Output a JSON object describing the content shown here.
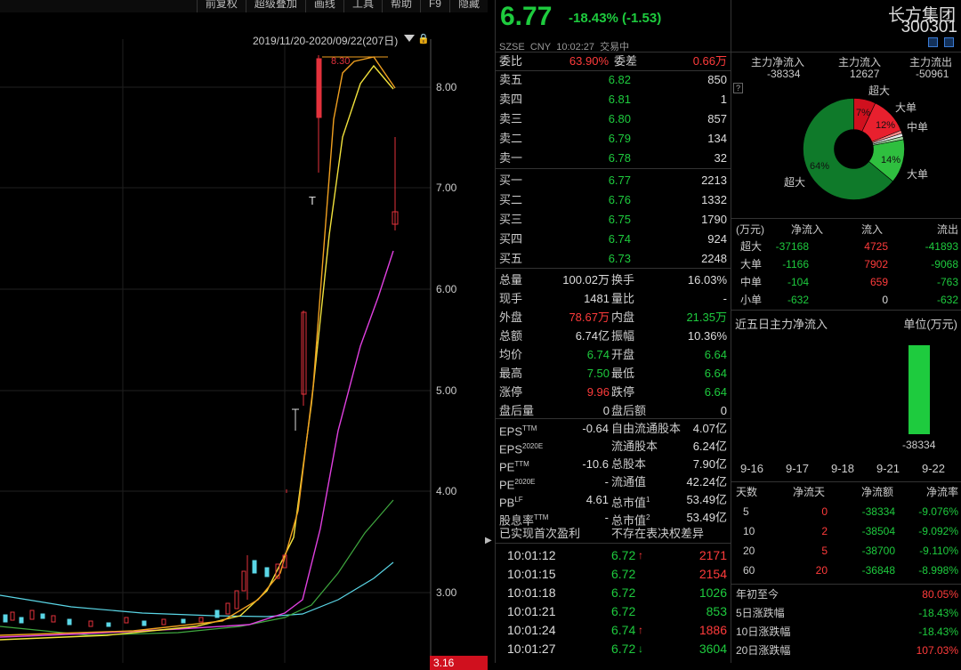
{
  "toolbar": [
    "前复权",
    "超级叠加",
    "画线",
    "工具",
    "帮助",
    "F9",
    "隐藏"
  ],
  "chart": {
    "range_label": "2019/11/20-2020/09/22(207日)",
    "y_ticks": [
      "8.00",
      "7.00",
      "6.00",
      "5.00",
      "4.00",
      "3.00"
    ],
    "current_price_tag": "3.16",
    "high_marker": "8.30"
  },
  "quote": {
    "price": "6.77",
    "change": "-18.43% (-1.53)",
    "market": "SZSE",
    "currency": "CNY",
    "time": "10:02:27",
    "status": "交易中"
  },
  "order_ratio": {
    "label1": "委比",
    "value1": "63.90%",
    "label2": "委差",
    "value2": "0.66万"
  },
  "asks": [
    {
      "label": "卖五",
      "price": "6.82",
      "vol": "850"
    },
    {
      "label": "卖四",
      "price": "6.81",
      "vol": "1"
    },
    {
      "label": "卖三",
      "price": "6.80",
      "vol": "857"
    },
    {
      "label": "卖二",
      "price": "6.79",
      "vol": "134"
    },
    {
      "label": "卖一",
      "price": "6.78",
      "vol": "32"
    }
  ],
  "bids": [
    {
      "label": "买一",
      "price": "6.77",
      "vol": "2213"
    },
    {
      "label": "买二",
      "price": "6.76",
      "vol": "1332"
    },
    {
      "label": "买三",
      "price": "6.75",
      "vol": "1790"
    },
    {
      "label": "买四",
      "price": "6.74",
      "vol": "924"
    },
    {
      "label": "买五",
      "price": "6.73",
      "vol": "2248"
    }
  ],
  "stats": [
    {
      "l1": "总量",
      "v1": "100.02万",
      "c1": "white",
      "l2": "换手",
      "v2": "16.03%",
      "c2": "white"
    },
    {
      "l1": "现手",
      "v1": "1481",
      "c1": "white",
      "l2": "量比",
      "v2": "-",
      "c2": "white"
    },
    {
      "l1": "外盘",
      "v1": "78.67万",
      "c1": "red",
      "l2": "内盘",
      "v2": "21.35万",
      "c2": "green"
    },
    {
      "l1": "总额",
      "v1": "6.74亿",
      "c1": "white",
      "l2": "振幅",
      "v2": "10.36%",
      "c2": "white"
    },
    {
      "l1": "均价",
      "v1": "6.74",
      "c1": "green",
      "l2": "开盘",
      "v2": "6.64",
      "c2": "green"
    },
    {
      "l1": "最高",
      "v1": "7.50",
      "c1": "green",
      "l2": "最低",
      "v2": "6.64",
      "c2": "green"
    },
    {
      "l1": "涨停",
      "v1": "9.96",
      "c1": "red",
      "l2": "跌停",
      "v2": "6.64",
      "c2": "green"
    },
    {
      "l1": "盘后量",
      "v1": "0",
      "c1": "white",
      "l2": "盘后额",
      "v2": "0",
      "c2": "white"
    }
  ],
  "fundamentals": [
    {
      "l1": "EPS",
      "sup1": "TTM",
      "v1": "-0.64",
      "l2": "自由流通股本",
      "v2": "4.07亿"
    },
    {
      "l1": "EPS",
      "sup1": "2020E",
      "v1": "",
      "l2": "流通股本",
      "v2": "6.24亿"
    },
    {
      "l1": "PE",
      "sup1": "TTM",
      "v1": "-10.6",
      "l2": "总股本",
      "v2": "7.90亿"
    },
    {
      "l1": "PE",
      "sup1": "2020E",
      "v1": "-",
      "l2": "流通值",
      "v2": "42.24亿"
    },
    {
      "l1": "PB",
      "sup1": "LF",
      "v1": "4.61",
      "l2": "总市值",
      "sup2": "1",
      "v2": "53.49亿"
    },
    {
      "l1": "股息率",
      "sup1": "TTM",
      "v1": "-",
      "l2": "总市值",
      "sup2": "2",
      "v2": "53.49亿"
    }
  ],
  "profit_note": {
    "l1": "已实现首次盈利",
    "l2": "不存在表决权差异"
  },
  "ticks": [
    {
      "time": "10:01:12",
      "price": "6.72",
      "arrow": "↑",
      "vol": "2171",
      "vc": "red"
    },
    {
      "time": "10:01:15",
      "price": "6.72",
      "arrow": "",
      "vol": "2154",
      "vc": "red"
    },
    {
      "time": "10:01:18",
      "price": "6.72",
      "arrow": "",
      "vol": "1026",
      "vc": "green"
    },
    {
      "time": "10:01:21",
      "price": "6.72",
      "arrow": "",
      "vol": "853",
      "vc": "green"
    },
    {
      "time": "10:01:24",
      "price": "6.74",
      "arrow": "↑",
      "vol": "1886",
      "vc": "red"
    },
    {
      "time": "10:01:27",
      "price": "6.72",
      "arrow": "↓",
      "vol": "3604",
      "vc": "green"
    }
  ],
  "company": {
    "name": "长方集团",
    "code": "300301"
  },
  "flow_summary": {
    "h1": "主力净流入",
    "v1": "-38334",
    "h2": "主力流入",
    "v2": "12627",
    "h3": "主力流出",
    "v3": "-50961",
    "help": "?"
  },
  "pie": {
    "labels": {
      "super_in": "超大",
      "large_in": "大单",
      "mid": "中单",
      "large_out": "大单",
      "super_out": "超大"
    },
    "pct": {
      "super_in": "7%",
      "large_in": "12%",
      "large_out": "14%",
      "super_out": "64%"
    },
    "fractions": [
      0.07,
      0.12,
      0.01,
      0.01,
      0.01,
      0.14,
      0.64
    ],
    "colors": [
      "#d0101e",
      "#e8202e",
      "#ff8a8a",
      "#eaeaea",
      "#9ed89e",
      "#2fbf3f",
      "#0f7a2a"
    ]
  },
  "flow_table": {
    "headers": [
      "(万元)",
      "净流入",
      "流入",
      "流出"
    ],
    "rows": [
      {
        "name": "超大",
        "net": "-37168",
        "in": "4725",
        "out": "-41893"
      },
      {
        "name": "大单",
        "net": "-1166",
        "in": "7902",
        "out": "-9068"
      },
      {
        "name": "中单",
        "net": "-104",
        "in": "659",
        "out": "-763"
      },
      {
        "name": "小单",
        "net": "-632",
        "in": "0",
        "out": "-632"
      }
    ]
  },
  "five_day": {
    "title": "近五日主力净流入",
    "unit": "单位(万元)",
    "dates": [
      "9-16",
      "9-17",
      "9-18",
      "9-21",
      "9-22"
    ],
    "values": [
      0,
      0,
      0,
      0,
      -38334
    ],
    "bar_label": "-38334"
  },
  "period_table": {
    "headers": [
      "天数",
      "净流天",
      "净流额",
      "净流率"
    ],
    "rows": [
      {
        "days": "5",
        "net_days": "0",
        "amount": "-38334",
        "rate": "-9.076%"
      },
      {
        "days": "10",
        "net_days": "2",
        "amount": "-38504",
        "rate": "-9.092%"
      },
      {
        "days": "20",
        "net_days": "5",
        "amount": "-38700",
        "rate": "-9.110%"
      },
      {
        "days": "60",
        "net_days": "20",
        "amount": "-36848",
        "rate": "-8.998%"
      }
    ]
  },
  "changes": [
    {
      "label": "年初至今",
      "value": "80.05%",
      "c": "red"
    },
    {
      "label": "5日涨跌幅",
      "value": "-18.43%",
      "c": "green"
    },
    {
      "label": "10日涨跌幅",
      "value": "-18.43%",
      "c": "green"
    },
    {
      "label": "20日涨跌幅",
      "value": "107.03%",
      "c": "red"
    }
  ]
}
